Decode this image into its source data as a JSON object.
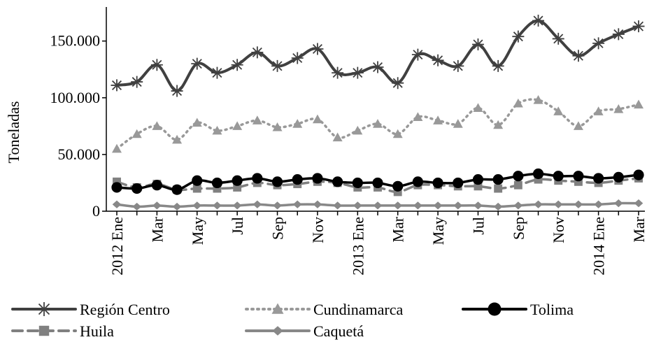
{
  "chart_data": {
    "type": "line",
    "ylabel": "Toneladas",
    "ylim": [
      0,
      180000
    ],
    "y_ticks": [
      0,
      50000,
      100000,
      150000
    ],
    "y_tick_labels": [
      "0",
      "50.000",
      "100.000",
      "150.000"
    ],
    "x": [
      "2012-01",
      "2012-02",
      "2012-03",
      "2012-04",
      "2012-05",
      "2012-06",
      "2012-07",
      "2012-08",
      "2012-09",
      "2012-10",
      "2012-11",
      "2012-12",
      "2013-01",
      "2013-02",
      "2013-03",
      "2013-04",
      "2013-05",
      "2013-06",
      "2013-07",
      "2013-08",
      "2013-09",
      "2013-10",
      "2013-11",
      "2013-12",
      "2014-01",
      "2014-02",
      "2014-03"
    ],
    "x_tick_labels": [
      "2012 Ene",
      "",
      "Mar",
      "",
      "May",
      "",
      "Jul",
      "",
      "Sep",
      "",
      "Nov",
      "",
      "2013 Ene",
      "",
      "Mar",
      "",
      "May",
      "",
      "Jul",
      "",
      "Sep",
      "",
      "Nov",
      "",
      "2014 Ene",
      "",
      "Mar"
    ],
    "series": [
      {
        "name": "Región Centro",
        "color": "#404040",
        "dash": "solid",
        "marker": "star",
        "values": [
          111000,
          114000,
          129000,
          106000,
          130000,
          122000,
          129000,
          140000,
          128000,
          135000,
          143000,
          122000,
          122000,
          127000,
          113000,
          138000,
          133000,
          128000,
          147000,
          128000,
          154000,
          168000,
          152000,
          137000,
          148000,
          156000,
          163000
        ]
      },
      {
        "name": "Cundinamarca",
        "color": "#999999",
        "dash": "dotted",
        "marker": "triangle",
        "values": [
          55000,
          68000,
          75000,
          63000,
          78000,
          71000,
          75000,
          80000,
          74000,
          77000,
          81000,
          65000,
          71000,
          77000,
          68000,
          83000,
          80000,
          77000,
          91000,
          76000,
          95000,
          98000,
          88000,
          75000,
          88000,
          90000,
          94000
        ]
      },
      {
        "name": "Tolima",
        "color": "#000000",
        "dash": "solid",
        "marker": "circle",
        "values": [
          21000,
          20000,
          23000,
          19000,
          27000,
          25000,
          27000,
          29000,
          26000,
          28000,
          29000,
          26000,
          25000,
          25000,
          22000,
          26000,
          25000,
          25000,
          28000,
          28000,
          31000,
          33000,
          31000,
          31000,
          29000,
          30000,
          32000
        ]
      },
      {
        "name": "Huila",
        "color": "#808080",
        "dash": "dashed",
        "marker": "square",
        "values": [
          26000,
          21000,
          24000,
          19000,
          20000,
          20000,
          21000,
          25000,
          23000,
          24000,
          26000,
          25000,
          21000,
          21000,
          17000,
          23000,
          23000,
          22000,
          22000,
          20000,
          23000,
          28000,
          27000,
          26000,
          25000,
          27000,
          29000
        ]
      },
      {
        "name": "Caquetá",
        "color": "#888888",
        "dash": "solid",
        "marker": "diamond",
        "values": [
          6000,
          4000,
          5000,
          4000,
          5000,
          5000,
          5000,
          6000,
          5000,
          6000,
          6000,
          5000,
          5000,
          5000,
          5000,
          5000,
          5000,
          5000,
          5000,
          4000,
          5000,
          6000,
          6000,
          6000,
          6000,
          7000,
          7000
        ]
      }
    ]
  }
}
